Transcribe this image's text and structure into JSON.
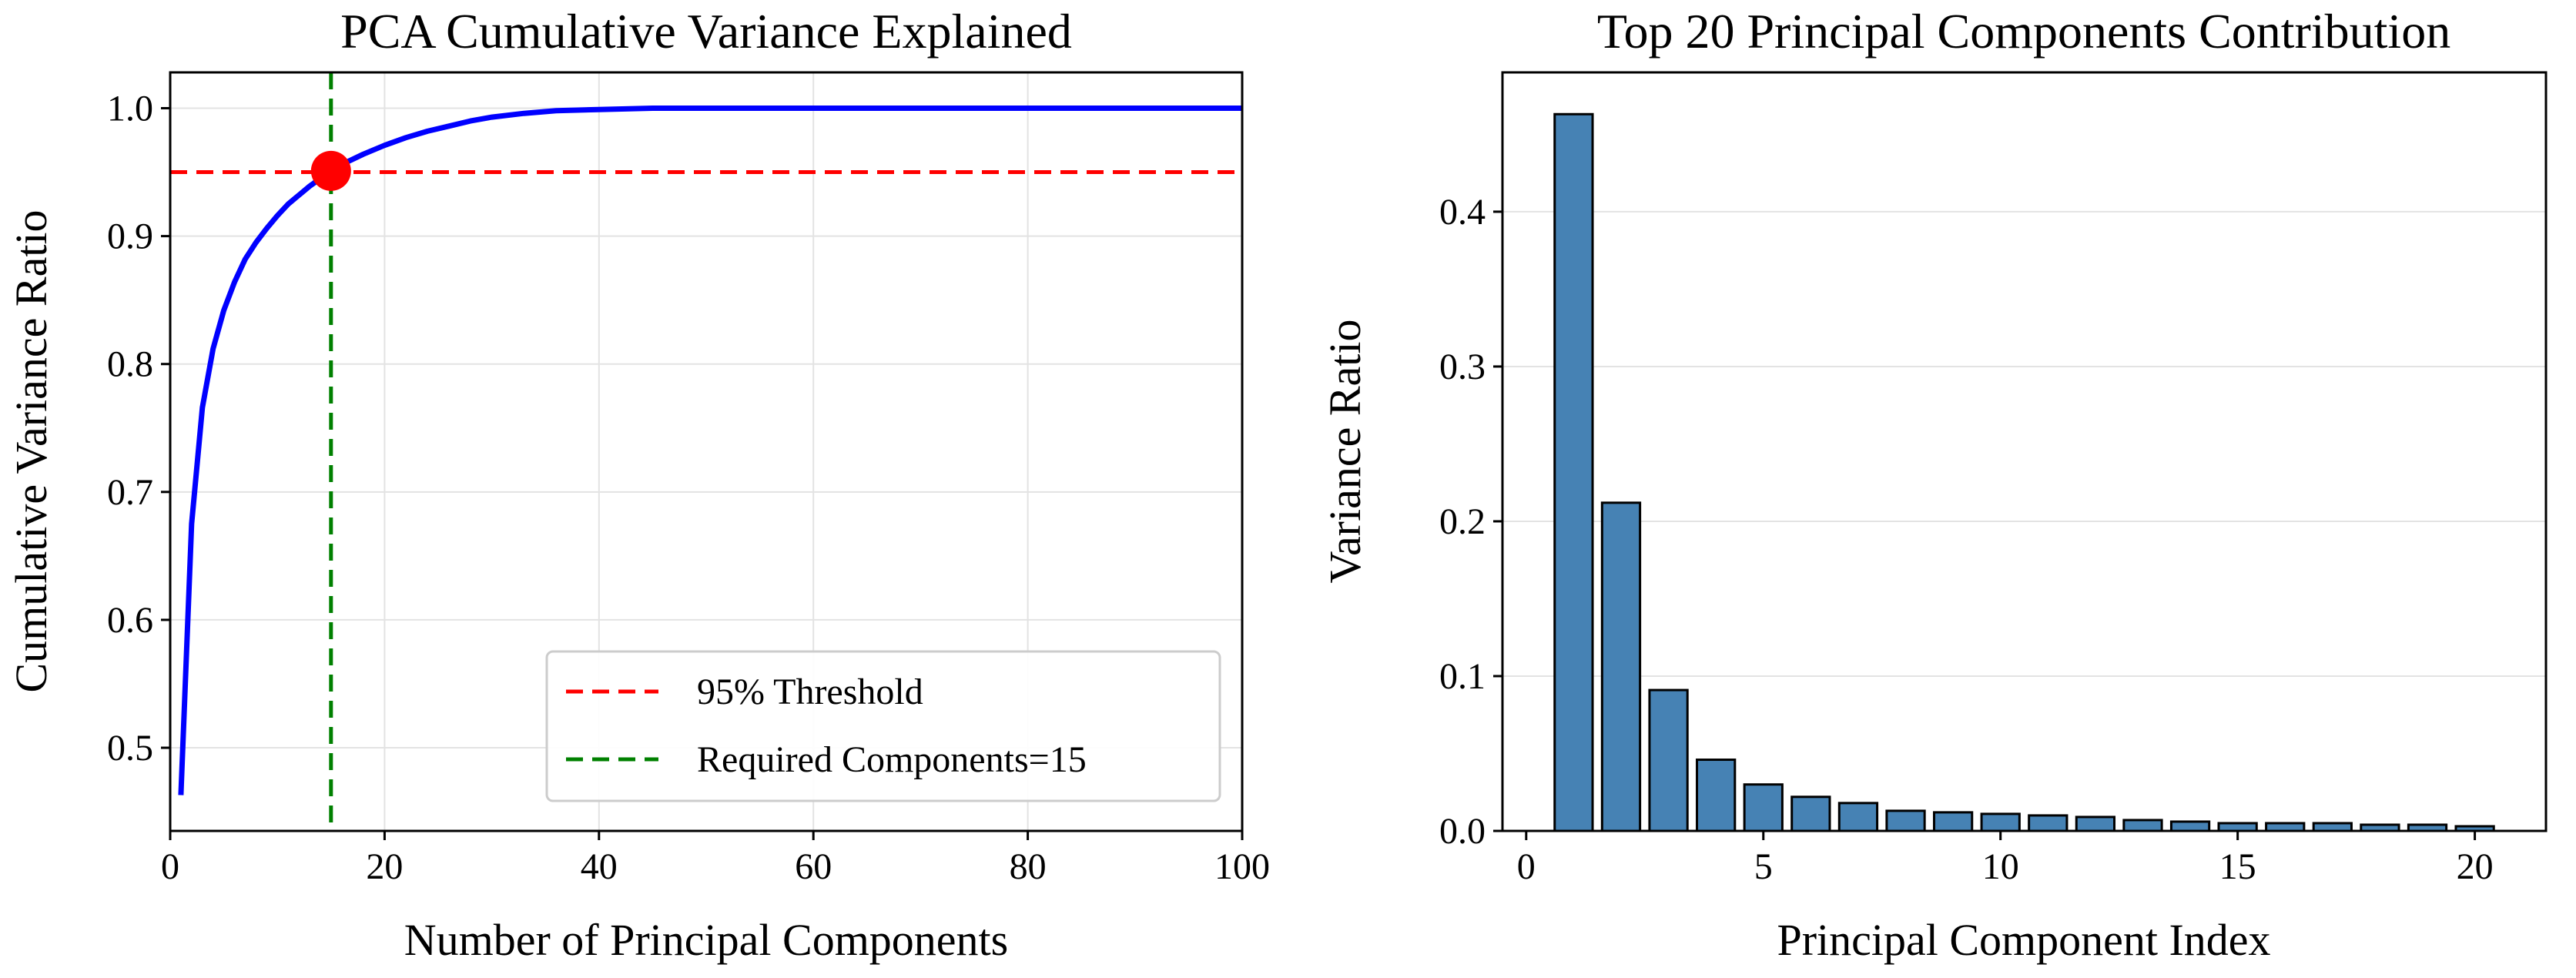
{
  "chart_data": [
    {
      "type": "line",
      "title": "PCA Cumulative Variance Explained",
      "xlabel": "Number of Principal Components",
      "ylabel": "Cumulative Variance Ratio",
      "xlim": [
        0,
        100
      ],
      "ylim": [
        0.435,
        1.028
      ],
      "xticks": [
        "0",
        "20",
        "40",
        "60",
        "80",
        "100"
      ],
      "yticks": [
        "0.5",
        "0.6",
        "0.7",
        "0.8",
        "0.9",
        "1.0"
      ],
      "grid": true,
      "legend_position": "lower-right",
      "series": [
        {
          "color": "#0000ff",
          "x": [
            1,
            2,
            3,
            4,
            5,
            6,
            7,
            8,
            9,
            10,
            11,
            12,
            13,
            14,
            15,
            16,
            18,
            20,
            22,
            24,
            26,
            28,
            30,
            33,
            36,
            40,
            45,
            50,
            60,
            70,
            80,
            90,
            100
          ],
          "y": [
            0.463,
            0.675,
            0.766,
            0.812,
            0.842,
            0.864,
            0.882,
            0.895,
            0.906,
            0.916,
            0.925,
            0.932,
            0.939,
            0.945,
            0.951,
            0.956,
            0.964,
            0.971,
            0.977,
            0.982,
            0.986,
            0.99,
            0.993,
            0.996,
            0.998,
            0.999,
            1.0,
            1.0,
            1.0,
            1.0,
            1.0,
            1.0,
            1.0
          ]
        }
      ],
      "reference_lines": [
        {
          "name": "95% Threshold",
          "orientation": "horizontal",
          "value": 0.95,
          "color": "#ff0000",
          "style": "dashed"
        },
        {
          "name": "Required Components=15",
          "orientation": "vertical",
          "value": 15,
          "color": "#008000",
          "style": "dashed"
        }
      ],
      "marker": {
        "x": 15,
        "y": 0.951,
        "color": "#ff0000"
      }
    },
    {
      "type": "bar",
      "title": "Top 20 Principal Components Contribution",
      "xlabel": "Principal Component Index",
      "ylabel": "Variance Ratio",
      "xlim": [
        -0.5,
        21.5
      ],
      "ylim": [
        0,
        0.49
      ],
      "xticks": [
        "0",
        "5",
        "10",
        "15",
        "20"
      ],
      "yticks": [
        "0.0",
        "0.1",
        "0.2",
        "0.3",
        "0.4"
      ],
      "grid": true,
      "bar_color": "#4682b4",
      "edge_color": "#000000",
      "categories": [
        1,
        2,
        3,
        4,
        5,
        6,
        7,
        8,
        9,
        10,
        11,
        12,
        13,
        14,
        15,
        16,
        17,
        18,
        19,
        20
      ],
      "values": [
        0.463,
        0.212,
        0.091,
        0.046,
        0.03,
        0.022,
        0.018,
        0.013,
        0.012,
        0.011,
        0.01,
        0.009,
        0.007,
        0.006,
        0.005,
        0.005,
        0.005,
        0.004,
        0.004,
        0.003
      ]
    }
  ]
}
